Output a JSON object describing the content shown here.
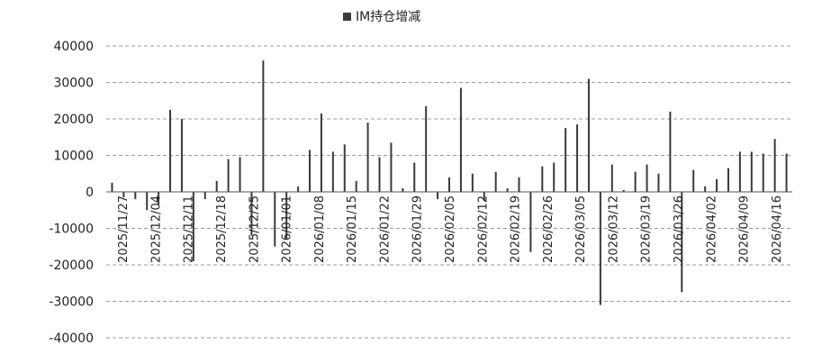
{
  "chart_data": {
    "type": "bar",
    "legend": {
      "position": "top-center",
      "entries": [
        "IM持仓增减"
      ]
    },
    "ylim": [
      -40000,
      40000
    ],
    "yticks": [
      40000,
      30000,
      20000,
      10000,
      0,
      -10000,
      -20000,
      -30000,
      -40000
    ],
    "ytick_labels": [
      "40000",
      "30000",
      "20000",
      "10000",
      "0",
      "-10000",
      "-20000",
      "-30000",
      "-40000"
    ],
    "grid": {
      "horizontal": true,
      "style": "dashed"
    },
    "xtick_labels": [
      "2025/11/27",
      "2025/12/04",
      "2025/12/11",
      "2025/12/18",
      "2025/12/25",
      "2026/01/01",
      "2026/01/08",
      "2026/01/15",
      "2026/01/22",
      "2026/01/29",
      "2026/02/05",
      "2026/02/12",
      "2026/02/19",
      "2026/02/26",
      "2026/03/05",
      "2026/03/12",
      "2026/03/19",
      "2026/03/26",
      "2026/04/02",
      "2026/04/09",
      "2026/04/16"
    ],
    "series": [
      {
        "name": "IM持仓增减",
        "color": "#3a3a3a",
        "values": [
          2500,
          -1500,
          -2000,
          -5000,
          -3500,
          22500,
          20000,
          -19000,
          -2000,
          3000,
          9000,
          9500,
          -12000,
          36000,
          -15000,
          -13000,
          1500,
          11500,
          21500,
          11000,
          13000,
          3000,
          19000,
          9500,
          13500,
          1000,
          8000,
          23500,
          -2000,
          4000,
          28500,
          5000,
          -2500,
          5500,
          1000,
          4000,
          -16500,
          7000,
          8000,
          17500,
          18500,
          31000,
          -31000,
          7500,
          500,
          5500,
          7500,
          5000,
          22000,
          -27500,
          6000,
          1500,
          3500,
          6500,
          11000,
          11000,
          10500,
          14500,
          10500
        ]
      }
    ]
  }
}
